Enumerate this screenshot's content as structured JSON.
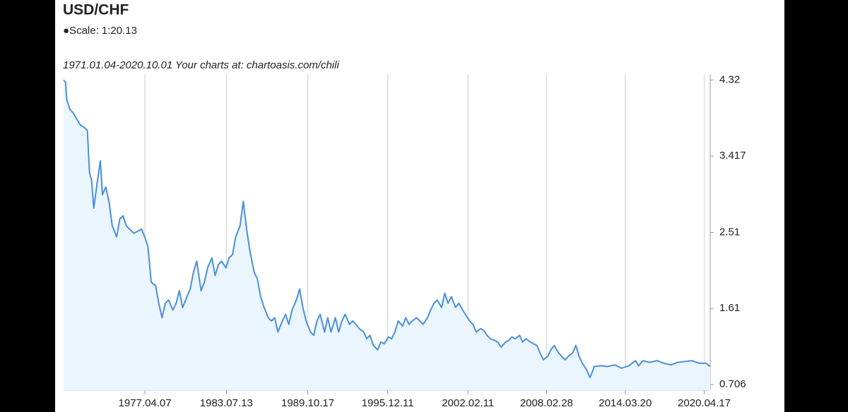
{
  "chart_data": {
    "type": "line",
    "title": "USD/CHF",
    "scale_note": "●Scale: 1:20.13",
    "subtitle": "1971.01.04-2020.10.01 Your charts at: chartoasis.com/chili",
    "x": [
      "1971.01.04",
      "1971.03.01",
      "1971.04.01",
      "1971.07.01",
      "1971.10.01",
      "1972.02.01",
      "1972.05.01",
      "1972.08.01",
      "1972.11.01",
      "1973.01.01",
      "1973.03.01",
      "1973.05.01",
      "1973.08.01",
      "1973.11.01",
      "1974.01.01",
      "1974.04.01",
      "1974.07.01",
      "1974.10.01",
      "1975.02.01",
      "1975.05.01",
      "1975.08.01",
      "1975.11.01",
      "1976.06.01",
      "1977.01.01",
      "1977.04.01",
      "1977.07.01",
      "1977.10.01",
      "1978.02.01",
      "1978.05.01",
      "1978.08.01",
      "1978.11.01",
      "1979.02.01",
      "1979.06.01",
      "1979.09.01",
      "1979.12.01",
      "1980.03.01",
      "1980.07.01",
      "1980.10.01",
      "1981.01.01",
      "1981.04.01",
      "1981.08.01",
      "1981.11.01",
      "1982.02.01",
      "1982.06.01",
      "1982.09.01",
      "1982.12.01",
      "1983.03.01",
      "1983.07.01",
      "1983.10.01",
      "1984.01.01",
      "1984.04.01",
      "1984.08.01",
      "1984.11.01",
      "1985.02.01",
      "1985.05.01",
      "1985.09.01",
      "1985.12.01",
      "1986.03.01",
      "1986.06.01",
      "1986.10.01",
      "1987.01.01",
      "1987.04.01",
      "1987.07.01",
      "1987.11.01",
      "1988.02.01",
      "1988.05.01",
      "1988.08.01",
      "1988.12.01",
      "1989.03.01",
      "1989.06.01",
      "1989.09.01",
      "1990.01.01",
      "1990.04.01",
      "1990.07.01",
      "1990.10.01",
      "1991.02.01",
      "1991.05.01",
      "1991.08.01",
      "1991.12.01",
      "1992.03.01",
      "1992.06.01",
      "1992.09.01",
      "1993.01.01",
      "1993.04.01",
      "1993.07.01",
      "1993.10.01",
      "1994.02.01",
      "1994.05.01",
      "1994.08.01",
      "1994.11.01",
      "1995.03.01",
      "1995.06.01",
      "1995.09.01",
      "1996.01.01",
      "1996.04.01",
      "1996.07.01",
      "1996.10.01",
      "1997.02.01",
      "1997.05.01",
      "1997.08.01",
      "1997.11.01",
      "1998.03.01",
      "1998.06.01",
      "1998.09.01",
      "1999.01.01",
      "1999.04.01",
      "1999.07.01",
      "1999.10.01",
      "2000.02.01",
      "2000.05.01",
      "2000.08.01",
      "2000.11.01",
      "2001.03.01",
      "2001.06.01",
      "2001.09.01",
      "2001.12.01",
      "2002.04.01",
      "2002.07.01",
      "2002.10.01",
      "2003.02.01",
      "2003.05.01",
      "2003.08.01",
      "2003.11.01",
      "2004.03.01",
      "2004.06.01",
      "2004.09.01",
      "2005.01.01",
      "2005.04.01",
      "2005.07.01",
      "2005.10.01",
      "2006.02.01",
      "2006.05.01",
      "2006.08.01",
      "2006.11.01",
      "2007.03.01",
      "2007.06.01",
      "2007.09.01",
      "2007.12.01",
      "2008.04.01",
      "2008.07.01",
      "2008.10.01",
      "2009.02.01",
      "2009.05.01",
      "2009.08.01",
      "2009.11.01",
      "2010.03.01",
      "2010.06.01",
      "2010.09.01",
      "2010.12.01",
      "2011.04.01",
      "2011.07.01",
      "2011.09.01",
      "2011.11.01",
      "2012.05.01",
      "2012.11.01",
      "2013.06.01",
      "2013.12.01",
      "2014.07.01",
      "2015.01.01",
      "2015.04.01",
      "2015.08.01",
      "2016.02.01",
      "2016.09.01",
      "2017.03.01",
      "2017.10.01",
      "2018.04.01",
      "2018.11.01",
      "2019.05.01",
      "2019.12.01",
      "2020.06.01",
      "2020.10.01"
    ],
    "series": [
      {
        "name": "USD/CHF",
        "color": "#4a8fdb",
        "values": [
          4.32,
          4.29,
          4.09,
          3.97,
          3.93,
          3.84,
          3.78,
          3.76,
          3.72,
          3.22,
          3.13,
          2.8,
          3.09,
          3.36,
          2.96,
          3.05,
          2.88,
          2.59,
          2.46,
          2.67,
          2.71,
          2.59,
          2.5,
          2.55,
          2.46,
          2.34,
          1.92,
          1.88,
          1.67,
          1.5,
          1.67,
          1.71,
          1.59,
          1.67,
          1.82,
          1.62,
          1.75,
          1.84,
          2.04,
          2.17,
          1.82,
          1.92,
          2.09,
          2.21,
          2.0,
          2.13,
          2.17,
          2.09,
          2.21,
          2.25,
          2.46,
          2.59,
          2.88,
          2.55,
          2.3,
          2.04,
          1.96,
          1.75,
          1.63,
          1.5,
          1.46,
          1.5,
          1.33,
          1.46,
          1.54,
          1.42,
          1.59,
          1.71,
          1.84,
          1.62,
          1.46,
          1.33,
          1.29,
          1.46,
          1.54,
          1.33,
          1.5,
          1.33,
          1.5,
          1.33,
          1.46,
          1.54,
          1.42,
          1.46,
          1.42,
          1.37,
          1.33,
          1.25,
          1.29,
          1.17,
          1.12,
          1.21,
          1.19,
          1.27,
          1.25,
          1.33,
          1.46,
          1.4,
          1.5,
          1.42,
          1.46,
          1.5,
          1.46,
          1.42,
          1.5,
          1.59,
          1.67,
          1.71,
          1.62,
          1.79,
          1.67,
          1.75,
          1.62,
          1.67,
          1.6,
          1.54,
          1.46,
          1.42,
          1.33,
          1.37,
          1.35,
          1.29,
          1.25,
          1.23,
          1.21,
          1.15,
          1.21,
          1.23,
          1.27,
          1.25,
          1.29,
          1.21,
          1.25,
          1.22,
          1.19,
          1.17,
          1.08,
          1.0,
          1.04,
          1.12,
          1.17,
          1.08,
          1.04,
          1.0,
          1.04,
          1.08,
          1.17,
          1.04,
          0.96,
          0.88,
          0.79,
          0.85,
          0.92,
          0.93,
          0.92,
          0.94,
          0.9,
          0.93,
          0.99,
          0.93,
          0.99,
          0.97,
          0.99,
          0.96,
          0.94,
          0.97,
          0.98,
          0.99,
          0.96,
          0.96,
          0.92
        ]
      }
    ],
    "xlim": [
      "1971.01.04",
      "2020.10.01"
    ],
    "xticks": [
      "1977.04.07",
      "1983.07.13",
      "1989.10.17",
      "1995.12.11",
      "2002.02.11",
      "2008.02.28",
      "2014.03.20",
      "2020.04.17"
    ],
    "ylim": [
      0.64,
      4.39
    ],
    "yticks": [
      0.706,
      1.61,
      2.51,
      3.417,
      4.32
    ],
    "y_axis_side": "right",
    "grid": "x",
    "area_fill": "#eaf5fd"
  }
}
